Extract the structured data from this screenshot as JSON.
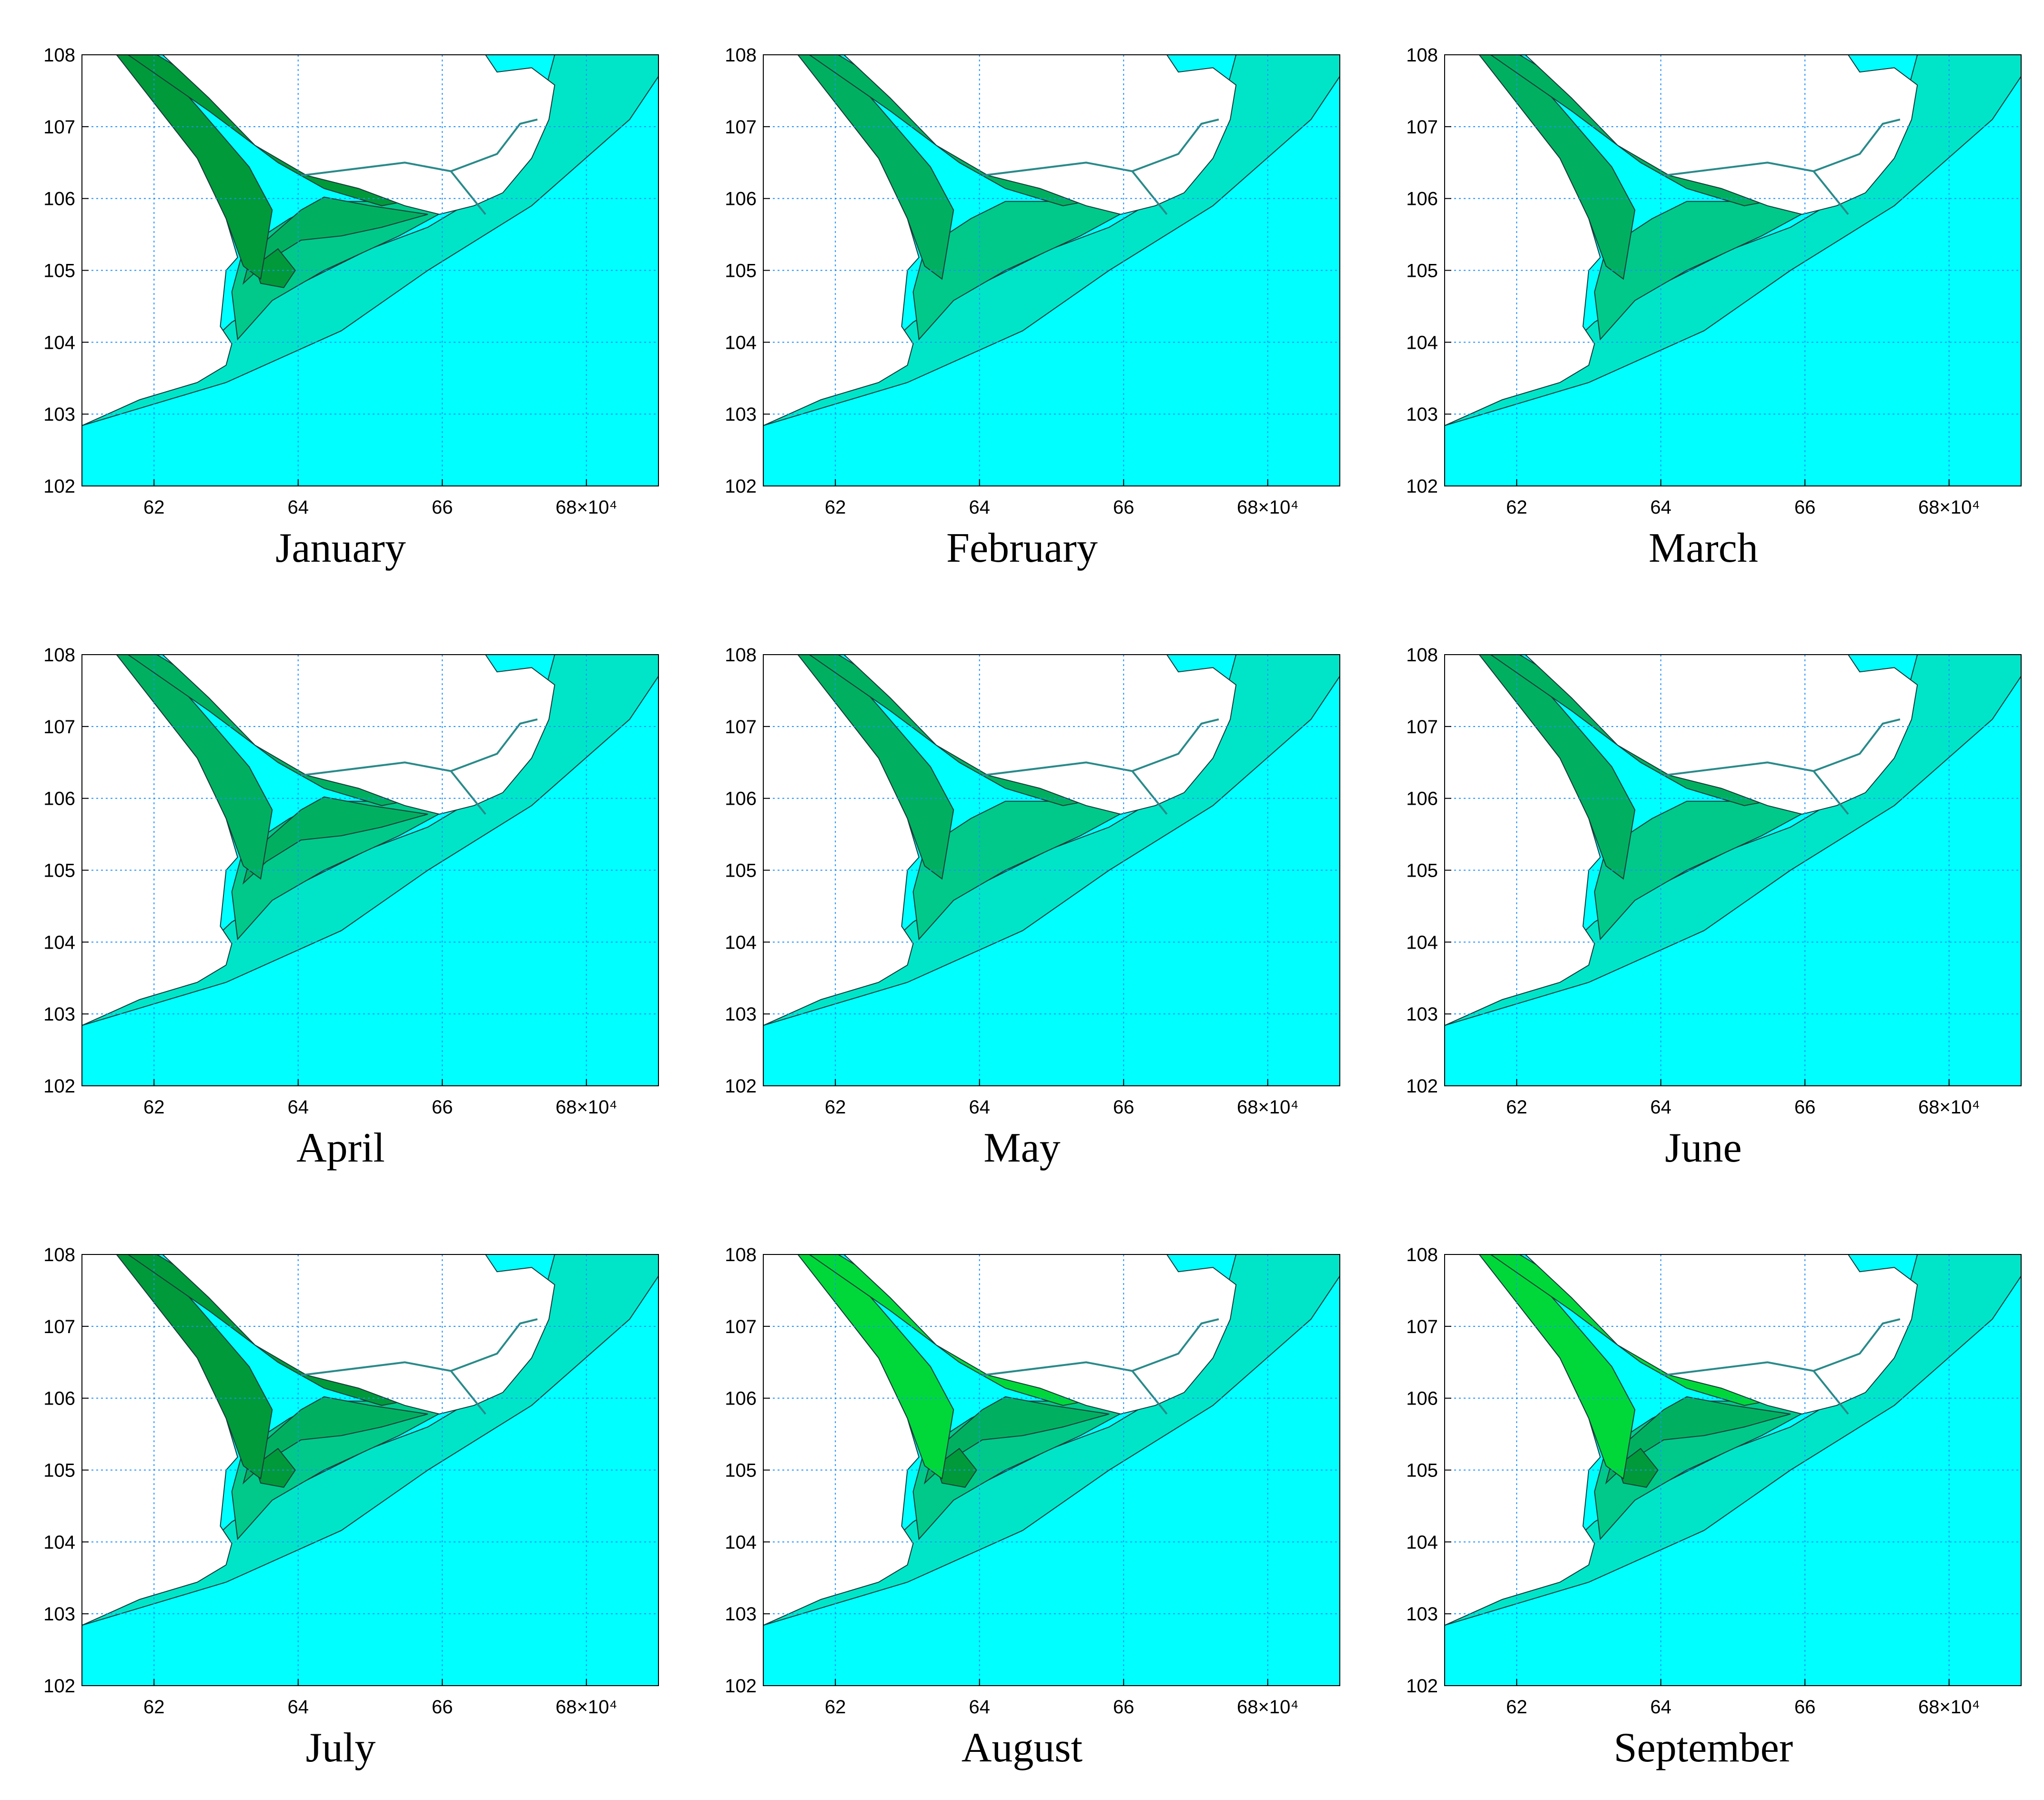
{
  "figure": {
    "months": [
      "January",
      "February",
      "March",
      "April",
      "May",
      "June",
      "July",
      "August",
      "September"
    ],
    "x_ticks": [
      "62",
      "64",
      "66",
      "68"
    ],
    "x_exponent_suffix": "×10⁴",
    "y_ticks": [
      "102",
      "103",
      "104",
      "105",
      "106",
      "107",
      "108"
    ],
    "colors": {
      "water": "#00ffff",
      "level1": "#00e5c8",
      "level2": "#00c98a",
      "level3": "#00b060",
      "level4": "#009a3a",
      "level5": "#00d83a",
      "land": "#ffffff",
      "grid": "#1e90ff",
      "contour": "#1a3a3a"
    },
    "intensity": [
      4,
      2,
      2,
      3,
      2,
      2,
      4,
      5,
      5
    ]
  }
}
